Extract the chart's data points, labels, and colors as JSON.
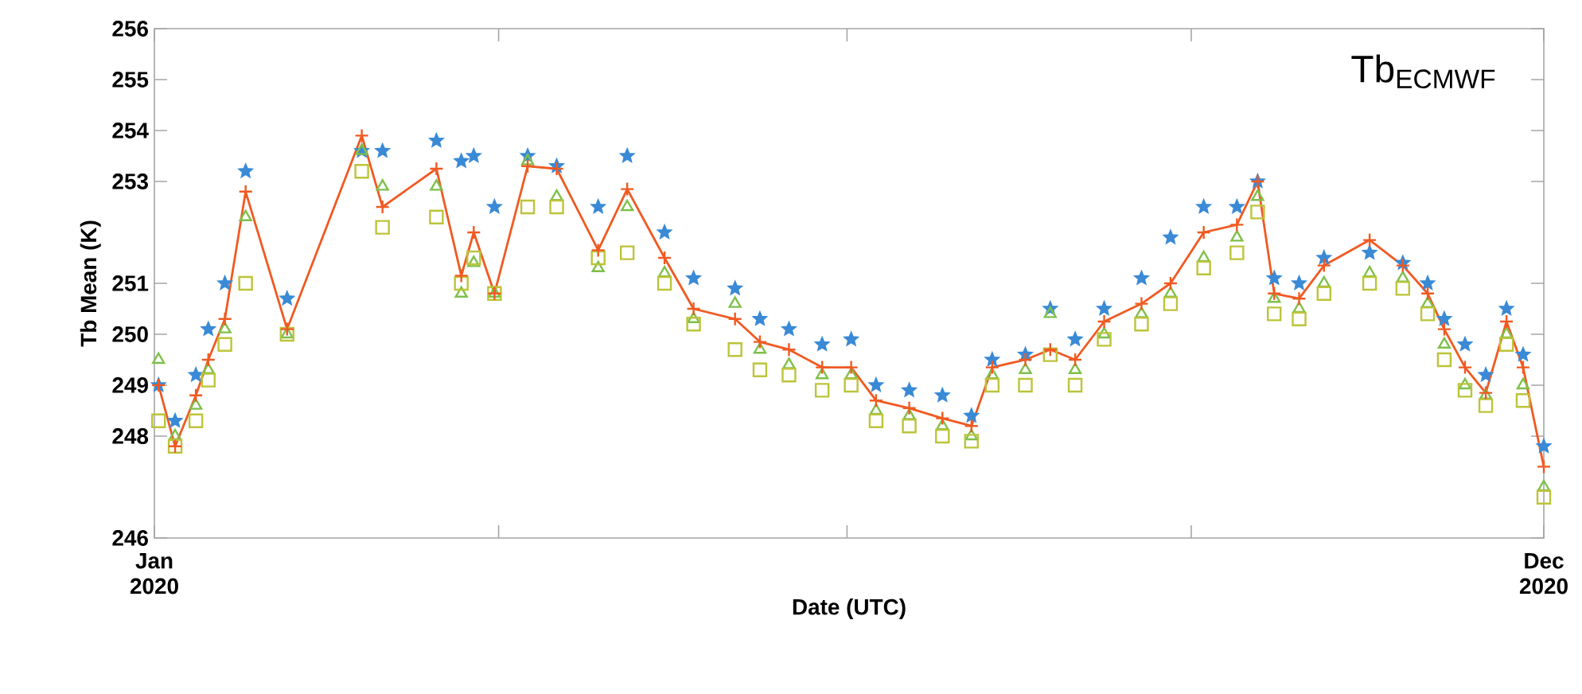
{
  "chart_data": {
    "type": "line",
    "xlabel": "Date (UTC)",
    "ylabel": "Tb Mean (K)",
    "annotations": [
      "Tb$_{ECMWF}$"
    ],
    "x": [
      "2020-01-02",
      "2020-01-06",
      "2020-01-11",
      "2020-01-14",
      "2020-01-18",
      "2020-01-23",
      "2020-02-02",
      "2020-02-20",
      "2020-02-25",
      "2020-03-09",
      "2020-03-15",
      "2020-03-18",
      "2020-03-23",
      "2020-03-31",
      "2020-04-07",
      "2020-04-17",
      "2020-04-24",
      "2020-05-03",
      "2020-05-10",
      "2020-05-20",
      "2020-05-26",
      "2020-06-02",
      "2020-06-10",
      "2020-06-17",
      "2020-06-23",
      "2020-07-01",
      "2020-07-09",
      "2020-07-16",
      "2020-07-21",
      "2020-07-29",
      "2020-08-04",
      "2020-08-10",
      "2020-08-17",
      "2020-08-26",
      "2020-09-02",
      "2020-09-10",
      "2020-09-18",
      "2020-09-23",
      "2020-09-27",
      "2020-10-03",
      "2020-10-09",
      "2020-10-20",
      "2020-10-28",
      "2020-11-03",
      "2020-11-07",
      "2020-11-12",
      "2020-11-17",
      "2020-11-22",
      "2020-11-26",
      "2020-12-01"
    ],
    "series": [
      {
        "type": "scatter",
        "marker": "star",
        "color": "#3a8ad6",
        "values": [
          249.0,
          248.3,
          249.2,
          250.1,
          251.0,
          253.2,
          250.7,
          253.6,
          253.6,
          253.8,
          253.4,
          253.5,
          252.5,
          253.5,
          253.3,
          252.5,
          253.5,
          252.0,
          251.1,
          250.9,
          250.3,
          250.1,
          249.8,
          249.9,
          249.0,
          248.9,
          248.8,
          248.4,
          249.5,
          249.6,
          250.5,
          249.9,
          250.5,
          251.1,
          251.9,
          252.5,
          252.5,
          253.0,
          251.1,
          251.0,
          251.5,
          251.6,
          251.4,
          251.0,
          250.3,
          249.8,
          249.2,
          250.5,
          249.6,
          247.8
        ]
      },
      {
        "type": "scatter",
        "marker": "triangle",
        "color": "#7ec04a",
        "values": [
          249.5,
          248.0,
          248.6,
          249.3,
          250.1,
          252.3,
          250.0,
          253.6,
          252.9,
          252.9,
          250.8,
          251.4,
          250.8,
          253.4,
          252.7,
          251.3,
          252.5,
          251.2,
          250.3,
          250.6,
          249.7,
          249.4,
          249.2,
          249.2,
          248.5,
          248.4,
          248.2,
          248.0,
          249.2,
          249.3,
          250.4,
          249.3,
          250.0,
          250.4,
          250.8,
          251.5,
          251.9,
          252.7,
          250.7,
          250.5,
          251.0,
          251.2,
          251.1,
          250.6,
          249.8,
          249.0,
          248.8,
          250.0,
          249.0,
          247.0
        ]
      },
      {
        "type": "scatter",
        "marker": "square",
        "color": "#bcc43a",
        "values": [
          248.3,
          247.8,
          248.3,
          249.1,
          249.8,
          251.0,
          250.0,
          253.2,
          252.1,
          252.3,
          251.0,
          251.5,
          250.8,
          252.5,
          252.5,
          251.5,
          251.6,
          251.0,
          250.2,
          249.7,
          249.3,
          249.2,
          248.9,
          249.0,
          248.3,
          248.2,
          248.0,
          247.9,
          249.0,
          249.0,
          249.6,
          249.0,
          249.9,
          250.2,
          250.6,
          251.3,
          251.6,
          252.4,
          250.4,
          250.3,
          250.8,
          251.0,
          250.9,
          250.4,
          249.5,
          248.9,
          248.6,
          249.8,
          248.7,
          246.8
        ]
      },
      {
        "marker": "cross",
        "color": "#f05a22",
        "values": [
          249.0,
          247.8,
          248.8,
          249.5,
          250.3,
          252.8,
          250.1,
          253.9,
          252.5,
          253.25,
          251.15,
          252.0,
          250.8,
          253.3,
          253.25,
          251.65,
          252.85,
          251.5,
          250.5,
          250.3,
          249.85,
          249.7,
          249.35,
          249.35,
          248.7,
          248.55,
          248.35,
          248.2,
          249.35,
          249.5,
          249.7,
          249.5,
          250.25,
          250.6,
          251.0,
          252.0,
          252.15,
          253.0,
          250.8,
          250.7,
          251.35,
          251.85,
          251.35,
          250.8,
          250.1,
          249.35,
          248.85,
          250.25,
          249.35,
          247.4
        ]
      }
    ],
    "xlim": [
      "2020-01-01",
      "2020-12-01"
    ],
    "xticks": [
      {
        "value": "2020-01-01",
        "label": "Jan 2020"
      },
      {
        "value": "2020-03-24",
        "label": null
      },
      {
        "value": "2020-06-16",
        "label": null
      },
      {
        "value": "2020-09-07",
        "label": null
      },
      {
        "value": "2020-12-01",
        "label": "Dec 2020"
      }
    ],
    "ylim": [
      246,
      256
    ],
    "yticks": [
      246,
      248,
      249,
      250,
      251,
      253,
      254,
      255,
      256
    ]
  }
}
